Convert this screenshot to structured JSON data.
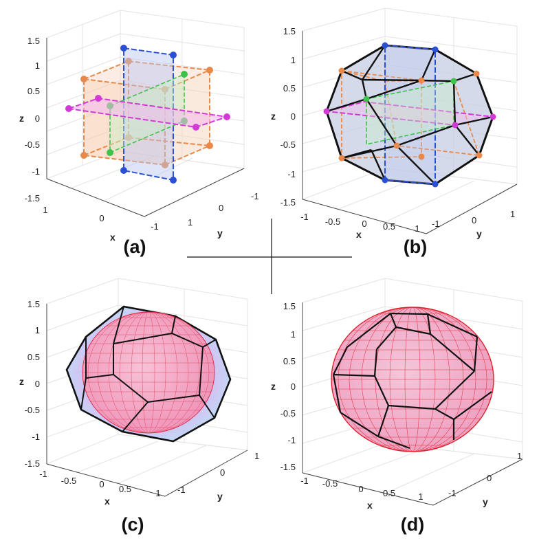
{
  "panels": [
    {
      "id": "a",
      "label": "(a)",
      "axis_names": {
        "x": "x",
        "y": "y",
        "z": "z"
      },
      "z_ticks": [
        "1.5",
        "1",
        "0.5",
        "0",
        "-0.5",
        "-1",
        "-1.5"
      ],
      "x_ticks": [
        "1",
        "0",
        "-1"
      ],
      "y_ticks": [
        "-1",
        "0",
        "1"
      ],
      "colors": {
        "orange": "#e8894a",
        "blue": "#2a4fd4",
        "green": "#3dc24a",
        "magenta": "#d23ad6"
      }
    },
    {
      "id": "b",
      "label": "(b)",
      "axis_names": {
        "x": "x",
        "y": "y",
        "z": "z"
      },
      "z_ticks": [
        "1.5",
        "1",
        "0.5",
        "0",
        "-0.5",
        "-1",
        "-1.5"
      ],
      "x_ticks": [
        "-1",
        "-0.5",
        "0",
        "0.5",
        "1"
      ],
      "y_ticks": [
        "-1",
        "0",
        "1"
      ],
      "colors": {
        "edge": "#111111",
        "face": "#c9d2e6"
      }
    },
    {
      "id": "c",
      "label": "(c)",
      "axis_names": {
        "x": "x",
        "y": "y",
        "z": "z"
      },
      "z_ticks": [
        "1.5",
        "1",
        "0.5",
        "0",
        "-0.5",
        "-1",
        "-1.5"
      ],
      "x_ticks": [
        "-1",
        "-0.5",
        "0",
        "0.5",
        "1"
      ],
      "y_ticks": [
        "-1",
        "0",
        "1"
      ],
      "colors": {
        "mesh": "#e0304a",
        "fill": "#f4a6c8",
        "shell": "#c4b8f0"
      }
    },
    {
      "id": "d",
      "label": "(d)",
      "axis_names": {
        "x": "x",
        "y": "y",
        "z": "z"
      },
      "z_ticks": [
        "1.5",
        "1",
        "0.5",
        "0",
        "-0.5",
        "-1",
        "-1.5"
      ],
      "x_ticks": [
        "-1",
        "-0.5",
        "0",
        "0.5",
        "1"
      ],
      "y_ticks": [
        "-1",
        "0",
        "1"
      ],
      "colors": {
        "mesh": "#e0202a",
        "fill": "#f2b0cc"
      }
    }
  ]
}
